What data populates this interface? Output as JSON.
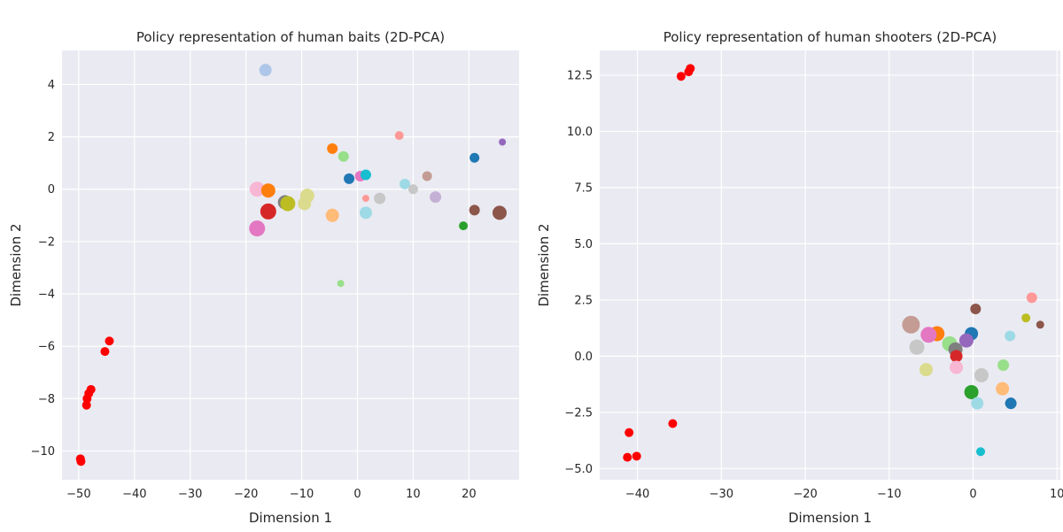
{
  "chart_data": [
    {
      "type": "scatter",
      "title": "Policy representation of human baits (2D-PCA)",
      "xlabel": "Dimension 1",
      "ylabel": "Dimension 2",
      "xlim": [
        -53,
        29
      ],
      "ylim": [
        -11.1,
        5.3
      ],
      "xticks": [
        -50,
        -40,
        -30,
        -20,
        -10,
        0,
        10,
        20
      ],
      "yticks": [
        -10,
        -8,
        -6,
        -4,
        -2,
        0,
        2,
        4
      ],
      "grid": true,
      "points": [
        {
          "x": -16.5,
          "y": 4.55,
          "r": 7,
          "color": "#aec7e8"
        },
        {
          "x": -4.5,
          "y": 1.55,
          "r": 6,
          "color": "#ff7f0e"
        },
        {
          "x": -2.5,
          "y": 1.25,
          "r": 6,
          "color": "#98df8a"
        },
        {
          "x": -1.5,
          "y": 0.4,
          "r": 6,
          "color": "#1f77b4"
        },
        {
          "x": 0.5,
          "y": 0.5,
          "r": 6,
          "color": "#e377c2"
        },
        {
          "x": 1.5,
          "y": 0.55,
          "r": 6,
          "color": "#17becf"
        },
        {
          "x": 7.5,
          "y": 2.05,
          "r": 5,
          "color": "#ff9896"
        },
        {
          "x": 8.5,
          "y": 0.2,
          "r": 6,
          "color": "#9edae5"
        },
        {
          "x": 10.0,
          "y": 0.0,
          "r": 5.5,
          "color": "#c7c7c7"
        },
        {
          "x": 12.5,
          "y": 0.5,
          "r": 5.5,
          "color": "#c49c94"
        },
        {
          "x": 14.0,
          "y": -0.3,
          "r": 6.5,
          "color": "#c5b0d5"
        },
        {
          "x": 21.0,
          "y": 1.2,
          "r": 5.5,
          "color": "#1f77b4"
        },
        {
          "x": 26.0,
          "y": 1.8,
          "r": 4,
          "color": "#9467bd"
        },
        {
          "x": -18.0,
          "y": 0.0,
          "r": 8.5,
          "color": "#f7b6d2"
        },
        {
          "x": -16.0,
          "y": -0.05,
          "r": 8,
          "color": "#ff7f0e"
        },
        {
          "x": -16.0,
          "y": -0.85,
          "r": 9,
          "color": "#d62728"
        },
        {
          "x": -18.0,
          "y": -1.5,
          "r": 9,
          "color": "#e377c2"
        },
        {
          "x": -13.0,
          "y": -0.5,
          "r": 8,
          "color": "#7f7f7f"
        },
        {
          "x": -12.5,
          "y": -0.55,
          "r": 8.5,
          "color": "#bcbd22"
        },
        {
          "x": -9.0,
          "y": -0.25,
          "r": 8,
          "color": "#dbdb8d"
        },
        {
          "x": -9.5,
          "y": -0.55,
          "r": 7.5,
          "color": "#dbdb8d"
        },
        {
          "x": -4.5,
          "y": -1.0,
          "r": 7.5,
          "color": "#ffbb78"
        },
        {
          "x": 1.5,
          "y": -0.9,
          "r": 7,
          "color": "#9edae5"
        },
        {
          "x": 1.5,
          "y": -0.35,
          "r": 4,
          "color": "#ff9896"
        },
        {
          "x": 4.0,
          "y": -0.35,
          "r": 6.5,
          "color": "#c7c7c7"
        },
        {
          "x": 21.0,
          "y": -0.8,
          "r": 6,
          "color": "#8c564b"
        },
        {
          "x": 25.5,
          "y": -0.9,
          "r": 8,
          "color": "#8c564b"
        },
        {
          "x": 19.0,
          "y": -1.4,
          "r": 5,
          "color": "#2ca02c"
        },
        {
          "x": -3.0,
          "y": -3.6,
          "r": 4,
          "color": "#98df8a"
        },
        {
          "x": -44.5,
          "y": -5.8,
          "r": 5,
          "color": "#ff0000"
        },
        {
          "x": -45.3,
          "y": -6.2,
          "r": 5,
          "color": "#ff0000"
        },
        {
          "x": -47.8,
          "y": -7.65,
          "r": 5,
          "color": "#ff0000"
        },
        {
          "x": -48.2,
          "y": -7.8,
          "r": 5,
          "color": "#ff0000"
        },
        {
          "x": -48.5,
          "y": -8.0,
          "r": 5,
          "color": "#ff0000"
        },
        {
          "x": -48.6,
          "y": -8.25,
          "r": 5,
          "color": "#ff0000"
        },
        {
          "x": -49.7,
          "y": -10.3,
          "r": 5,
          "color": "#ff0000"
        },
        {
          "x": -49.6,
          "y": -10.4,
          "r": 5,
          "color": "#ff0000"
        }
      ]
    },
    {
      "type": "scatter",
      "title": "Policy representation of human shooters (2D-PCA)",
      "xlabel": "Dimension 1",
      "ylabel": "Dimension 2",
      "xlim": [
        -44.5,
        10.4
      ],
      "ylim": [
        -5.5,
        13.6
      ],
      "xticks": [
        -40,
        -30,
        -20,
        -10,
        0,
        10
      ],
      "yticks": [
        -5.0,
        -2.5,
        0.0,
        2.5,
        5.0,
        7.5,
        10.0,
        12.5
      ],
      "grid": true,
      "points": [
        {
          "x": -33.7,
          "y": 12.8,
          "r": 5,
          "color": "#ff0000"
        },
        {
          "x": -33.9,
          "y": 12.65,
          "r": 5,
          "color": "#ff0000"
        },
        {
          "x": -34.8,
          "y": 12.45,
          "r": 5,
          "color": "#ff0000"
        },
        {
          "x": -35.8,
          "y": -3.0,
          "r": 5,
          "color": "#ff0000"
        },
        {
          "x": -41.0,
          "y": -3.4,
          "r": 5,
          "color": "#ff0000"
        },
        {
          "x": -41.2,
          "y": -4.5,
          "r": 5,
          "color": "#ff0000"
        },
        {
          "x": -40.1,
          "y": -4.45,
          "r": 5,
          "color": "#ff0000"
        },
        {
          "x": 7.0,
          "y": 2.6,
          "r": 6,
          "color": "#ff9896"
        },
        {
          "x": 0.3,
          "y": 2.1,
          "r": 6,
          "color": "#8c564b"
        },
        {
          "x": 6.3,
          "y": 1.7,
          "r": 5,
          "color": "#bcbd22"
        },
        {
          "x": 8.0,
          "y": 1.4,
          "r": 4.5,
          "color": "#8c564b"
        },
        {
          "x": 4.4,
          "y": 0.9,
          "r": 6,
          "color": "#9edae5"
        },
        {
          "x": -7.4,
          "y": 1.4,
          "r": 10,
          "color": "#c49c94"
        },
        {
          "x": -4.3,
          "y": 1.0,
          "r": 8.5,
          "color": "#ff7f0e"
        },
        {
          "x": -5.3,
          "y": 0.95,
          "r": 9,
          "color": "#e377c2"
        },
        {
          "x": -0.2,
          "y": 1.0,
          "r": 7.5,
          "color": "#1f77b4"
        },
        {
          "x": -0.8,
          "y": 0.7,
          "r": 8,
          "color": "#9467bd"
        },
        {
          "x": -6.7,
          "y": 0.4,
          "r": 8.5,
          "color": "#c7c7c7"
        },
        {
          "x": -2.8,
          "y": 0.55,
          "r": 8.5,
          "color": "#98df8a"
        },
        {
          "x": -2.1,
          "y": 0.3,
          "r": 8,
          "color": "#7f7f7f"
        },
        {
          "x": -2.0,
          "y": 0.0,
          "r": 7,
          "color": "#d62728"
        },
        {
          "x": -5.6,
          "y": -0.6,
          "r": 7.5,
          "color": "#dbdb8d"
        },
        {
          "x": -2.0,
          "y": -0.5,
          "r": 7.5,
          "color": "#f7b6d2"
        },
        {
          "x": 1.0,
          "y": -0.85,
          "r": 8,
          "color": "#c7c7c7"
        },
        {
          "x": 3.6,
          "y": -0.4,
          "r": 6.5,
          "color": "#98df8a"
        },
        {
          "x": 3.5,
          "y": -1.45,
          "r": 7.5,
          "color": "#ffbb78"
        },
        {
          "x": -0.2,
          "y": -1.6,
          "r": 8,
          "color": "#2ca02c"
        },
        {
          "x": 0.5,
          "y": -2.1,
          "r": 7,
          "color": "#9edae5"
        },
        {
          "x": 4.5,
          "y": -2.1,
          "r": 6.5,
          "color": "#1f77b4"
        },
        {
          "x": 0.9,
          "y": -4.25,
          "r": 5,
          "color": "#17becf"
        }
      ]
    }
  ]
}
